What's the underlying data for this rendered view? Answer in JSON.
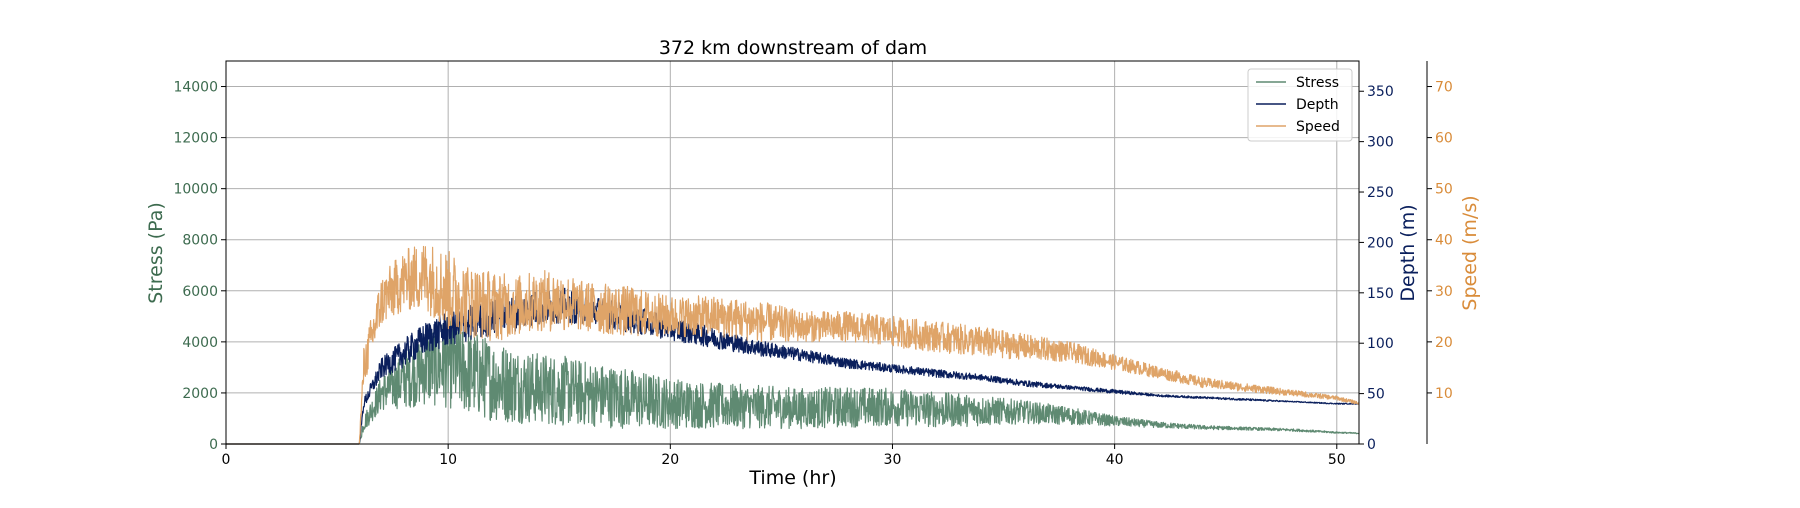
{
  "chart_data": {
    "type": "line",
    "title": "372 km downstream of dam",
    "xlabel": "Time (hr)",
    "xlim": [
      0,
      51
    ],
    "xticks": [
      0,
      10,
      20,
      30,
      40,
      50
    ],
    "grid": true,
    "legend_position": "top-right",
    "axes": {
      "stress": {
        "label": "Stress (Pa)",
        "color": "#3d6b4f",
        "side": "left",
        "ylim": [
          0,
          15000
        ],
        "ticks": [
          0,
          2000,
          4000,
          6000,
          8000,
          10000,
          12000,
          14000
        ]
      },
      "depth": {
        "label": "Depth (m)",
        "color": "#0a1f5c",
        "side": "right",
        "ylim": [
          0,
          380
        ],
        "ticks": [
          0,
          50,
          100,
          150,
          200,
          250,
          300,
          350
        ]
      },
      "speed": {
        "label": "Speed (m/s)",
        "color": "#d98c3a",
        "side": "right-offset",
        "ylim": [
          0,
          75
        ],
        "ticks": [
          10,
          20,
          30,
          40,
          50,
          60,
          70
        ]
      }
    },
    "series": [
      {
        "name": "Stress",
        "axis": "stress",
        "color": "#5f8a72",
        "x": [
          0,
          6,
          6.2,
          7,
          8,
          9,
          10,
          11,
          12,
          13,
          14,
          15,
          16,
          18,
          20,
          22,
          24,
          26,
          28,
          30,
          32,
          34,
          36,
          38,
          40,
          42,
          44,
          46,
          48,
          50,
          51
        ],
        "y": [
          0,
          0,
          800,
          2000,
          2500,
          3000,
          3200,
          2800,
          2500,
          2300,
          2200,
          2100,
          2000,
          1800,
          1600,
          1500,
          1450,
          1400,
          1450,
          1450,
          1350,
          1300,
          1250,
          1100,
          900,
          750,
          650,
          600,
          550,
          450,
          420
        ],
        "amp": [
          0,
          0,
          300,
          700,
          1100,
          1500,
          1800,
          1700,
          1600,
          1500,
          1400,
          1400,
          1300,
          1200,
          1000,
          900,
          850,
          800,
          800,
          750,
          700,
          600,
          450,
          350,
          200,
          120,
          80,
          60,
          50,
          30,
          20
        ]
      },
      {
        "name": "Depth",
        "axis": "depth",
        "color": "#0a1f5c",
        "x": [
          0,
          6,
          6.2,
          7,
          8,
          9,
          10,
          11,
          12,
          14,
          15,
          16,
          18,
          20,
          22,
          24,
          26,
          28,
          30,
          32,
          34,
          36,
          38,
          40,
          42,
          44,
          46,
          48,
          50,
          51
        ],
        "y": [
          0,
          0,
          40,
          75,
          90,
          105,
          115,
          120,
          125,
          135,
          138,
          135,
          125,
          115,
          105,
          95,
          88,
          80,
          75,
          70,
          66,
          60,
          56,
          52,
          48,
          46,
          44,
          42,
          40,
          40
        ],
        "amp": [
          0,
          0,
          5,
          10,
          14,
          16,
          18,
          18,
          18,
          18,
          18,
          16,
          14,
          12,
          10,
          8,
          6,
          5,
          4,
          4,
          3,
          3,
          2,
          2,
          1,
          1,
          1,
          0.5,
          0.5,
          0.5
        ]
      },
      {
        "name": "Speed",
        "axis": "speed",
        "color": "#dfa468",
        "x": [
          0,
          6,
          6.2,
          7,
          8,
          9,
          10,
          11,
          12,
          13,
          14,
          15,
          16,
          18,
          20,
          22,
          24,
          26,
          28,
          30,
          32,
          34,
          36,
          38,
          40,
          42,
          44,
          46,
          48,
          50,
          51
        ],
        "y": [
          0,
          0,
          15,
          28,
          32,
          33,
          30,
          28,
          27,
          27,
          28,
          28,
          27,
          26,
          25,
          25,
          24,
          23,
          23,
          22,
          21,
          20,
          19,
          18,
          16,
          14,
          12,
          11,
          10,
          9,
          8
        ],
        "amp": [
          0,
          0,
          4,
          5,
          6,
          7,
          8,
          7,
          7,
          6,
          6,
          6,
          5,
          5,
          4,
          4,
          4,
          3,
          3,
          3,
          3,
          3,
          2.5,
          2,
          1.5,
          1.2,
          1,
          0.8,
          0.6,
          0.4,
          0.3
        ]
      }
    ]
  }
}
